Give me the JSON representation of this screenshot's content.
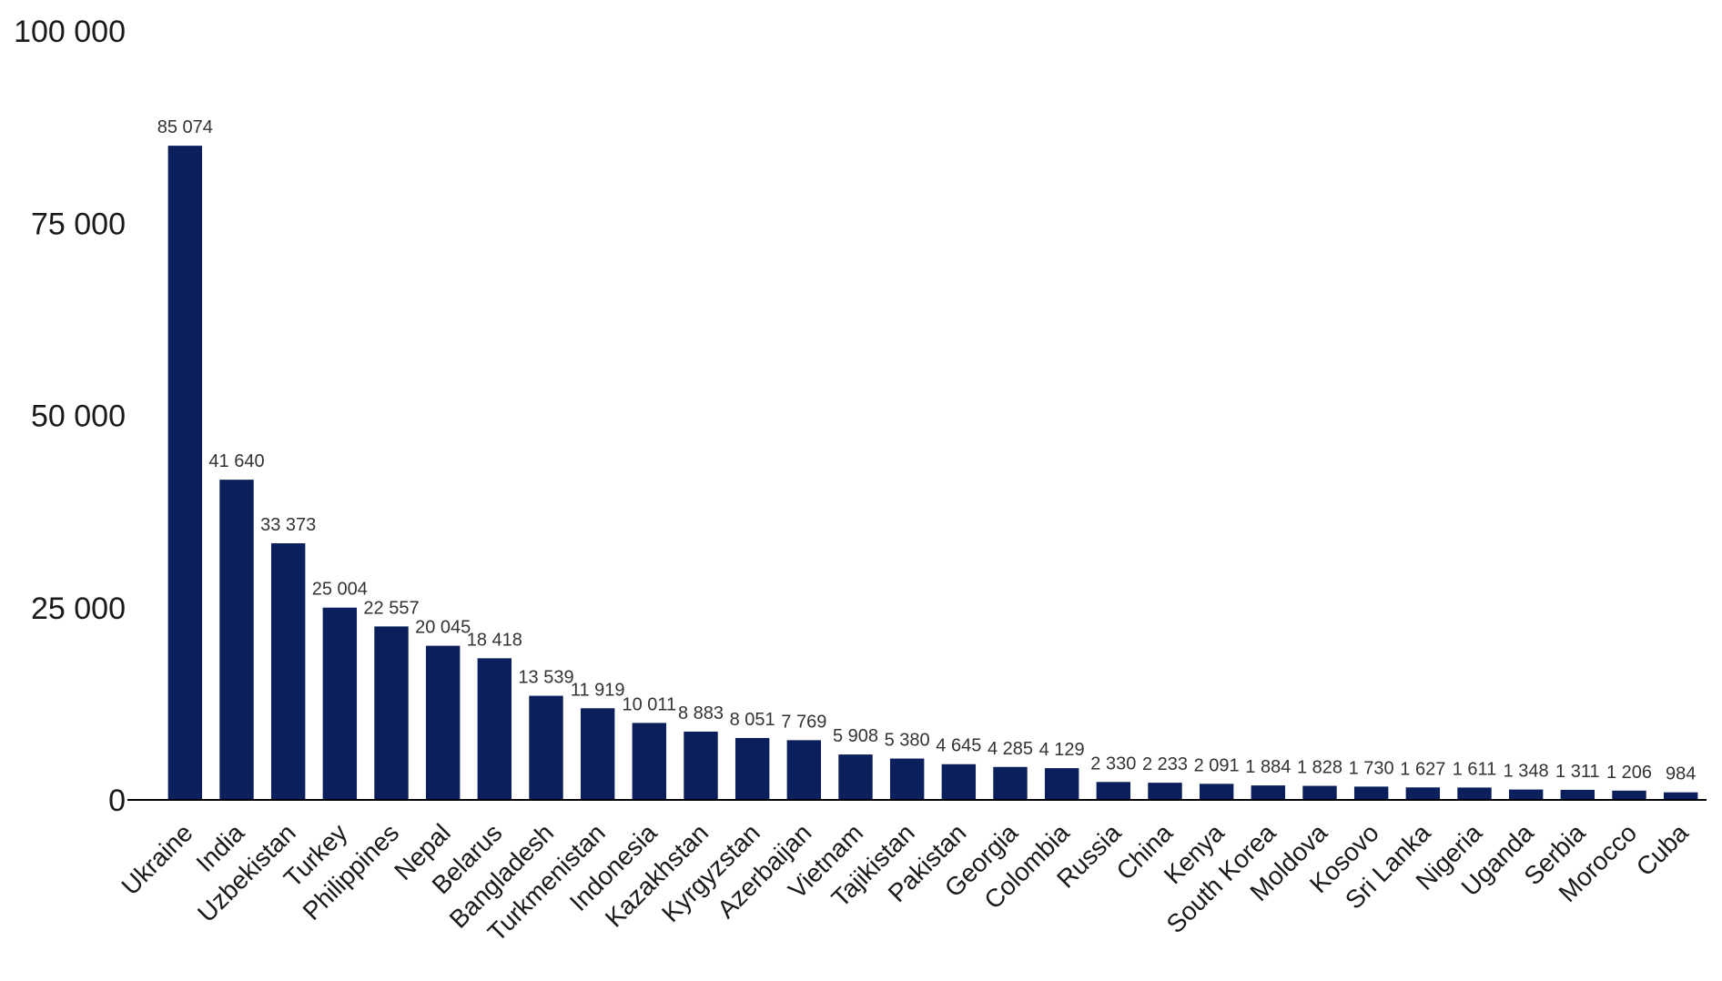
{
  "chart_data": {
    "type": "bar",
    "title": "",
    "xlabel": "",
    "ylabel": "",
    "ylim": [
      0,
      100000
    ],
    "yticks": [
      0,
      25000,
      50000,
      75000,
      100000
    ],
    "ytick_labels": [
      "0",
      "25 000",
      "50 000",
      "75 000",
      "100 000"
    ],
    "grid": false,
    "bar_color": "#0a1f5c",
    "categories": [
      "Ukraine",
      "India",
      "Uzbekistan",
      "Turkey",
      "Philippines",
      "Nepal",
      "Belarus",
      "Bangladesh",
      "Turkmenistan",
      "Indonesia",
      "Kazakhstan",
      "Kyrgyzstan",
      "Azerbaijan",
      "Vietnam",
      "Tajikistan",
      "Pakistan",
      "Georgia",
      "Colombia",
      "Russia",
      "China",
      "Kenya",
      "South Korea",
      "Moldova",
      "Kosovo",
      "Sri Lanka",
      "Nigeria",
      "Uganda",
      "Serbia",
      "Morocco",
      "Cuba"
    ],
    "values": [
      85074,
      41640,
      33373,
      25004,
      22557,
      20045,
      18418,
      13539,
      11919,
      10011,
      8883,
      8051,
      7769,
      5908,
      5380,
      4645,
      4285,
      4129,
      2330,
      2233,
      2091,
      1884,
      1828,
      1730,
      1627,
      1611,
      1348,
      1311,
      1206,
      984
    ],
    "value_labels": [
      "85 074",
      "41 640",
      "33 373",
      "25 004",
      "22 557",
      "20 045",
      "18 418",
      "13 539",
      "11 919",
      "10 011",
      "8 883",
      "8 051",
      "7 769",
      "5 908",
      "5 380",
      "4 645",
      "4 285",
      "4 129",
      "2 330",
      "2 233",
      "2 091",
      "1 884",
      "1 828",
      "1 730",
      "1 627",
      "1 611",
      "1 348",
      "1 311",
      "1 206",
      "984"
    ]
  }
}
